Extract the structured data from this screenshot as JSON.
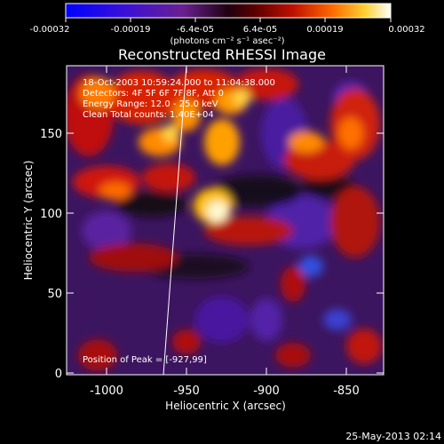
{
  "colorbar": {
    "tick_labels": [
      "-0.00032",
      "-0.00019",
      "-6.4e-05",
      "6.4e-05",
      "0.00019",
      "0.00032"
    ],
    "units": "(photons cm⁻² s⁻¹ asec⁻²)"
  },
  "image": {
    "title": "Reconstructed RHESSI Image",
    "annotations": [
      "18-Oct-2003 10:59:24.000 to 11:04:38.000",
      "Detectors: 4F 5F 6F 7F 8F, Att 0",
      "Energy Range: 12.0 - 25.0 keV",
      "Clean     Total counts: 1.40E+04"
    ],
    "peak_label": "Position of Peak = [-927,99]",
    "xlabel": "Heliocentric X (arcsec)",
    "ylabel": "Heliocentric Y (arcsec)",
    "x_ticks": [
      "-1000",
      "-950",
      "-900",
      "-850"
    ],
    "y_ticks": [
      "0",
      "50",
      "100",
      "150"
    ],
    "xlim": [
      -1025,
      -827
    ],
    "ylim": [
      -4,
      190
    ]
  },
  "footer": {
    "date": "25-May-2013 02:14"
  }
}
